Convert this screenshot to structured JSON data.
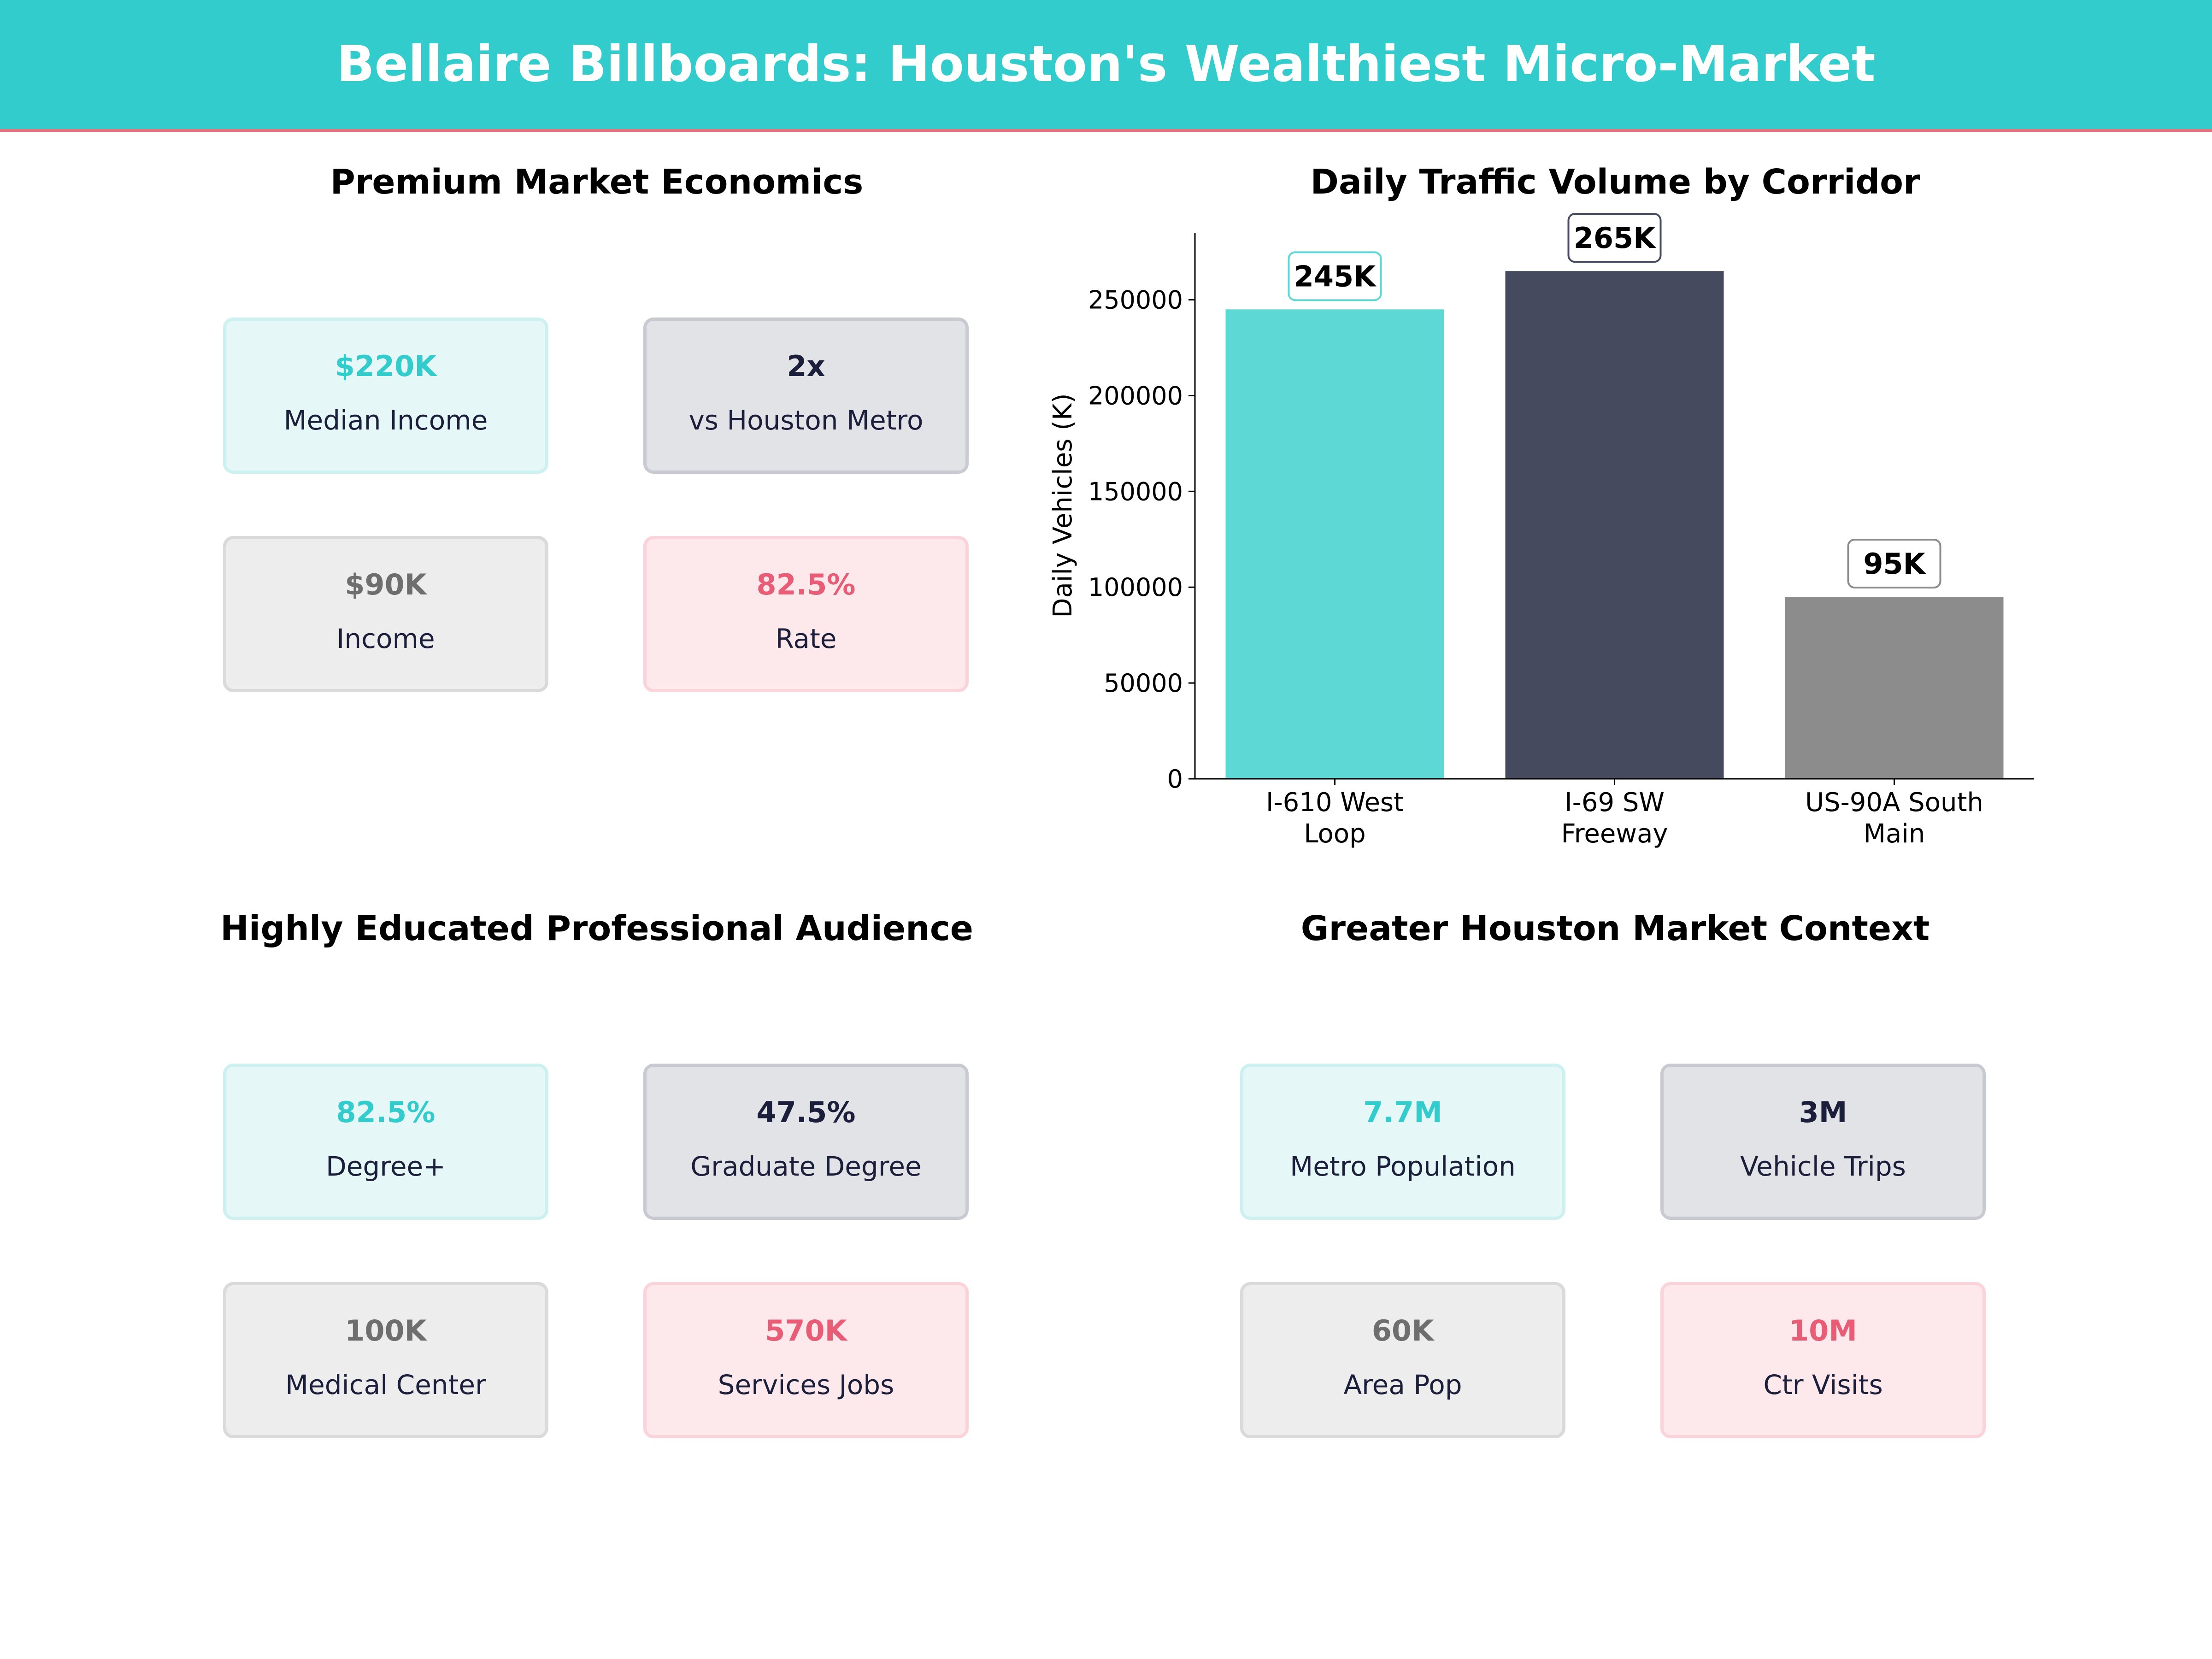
{
  "header": {
    "title": "Bellaire Billboards: Houston's Wealthiest Micro-Market"
  },
  "panels": {
    "economics": {
      "title": "Premium Market Economics",
      "cards": [
        {
          "value": "$220K",
          "label": "Median Income"
        },
        {
          "value": "2x",
          "label": "vs Houston Metro"
        },
        {
          "value": "$90K",
          "label": "Income"
        },
        {
          "value": "82.5%",
          "label": "Rate"
        }
      ]
    },
    "audience": {
      "title": "Highly Educated Professional Audience",
      "cards": [
        {
          "value": "82.5%",
          "label": "Degree+"
        },
        {
          "value": "47.5%",
          "label": "Graduate Degree"
        },
        {
          "value": "100K",
          "label": "Medical Center"
        },
        {
          "value": "570K",
          "label": "Services Jobs"
        }
      ]
    },
    "context": {
      "title": "Greater Houston Market Context",
      "cards": [
        {
          "value": "7.7M",
          "label": "Metro Population"
        },
        {
          "value": "3M",
          "label": "Vehicle Trips"
        },
        {
          "value": "60K",
          "label": "Area Pop"
        },
        {
          "value": "10M",
          "label": "Ctr Visits"
        }
      ]
    }
  },
  "colors": {
    "teal": "#33cccc",
    "navy": "#1b1f3b",
    "gray": "#6e6e6e",
    "pink": "#e85d75"
  },
  "chart_data": {
    "type": "bar",
    "title": "Daily Traffic Volume by Corridor",
    "xlabel": "",
    "ylabel": "Daily Vehicles (K)",
    "categories": [
      "I-610 West\nLoop",
      "I-69 SW\nFreeway",
      "US-90A South\nMain"
    ],
    "values": [
      245000,
      265000,
      95000
    ],
    "data_labels": [
      "245K",
      "265K",
      "95K"
    ],
    "bar_colors": [
      "#5dd8d5",
      "#464a5e",
      "#8c8c8c"
    ],
    "label_border_colors": [
      "#5dd8d5",
      "#464a5e",
      "#8c8c8c"
    ],
    "ylim": [
      0,
      285000
    ],
    "yticks": [
      0,
      50000,
      100000,
      150000,
      200000,
      250000
    ],
    "ytick_labels": [
      "0",
      "50000",
      "100000",
      "150000",
      "200000",
      "250000"
    ],
    "grid": false
  }
}
